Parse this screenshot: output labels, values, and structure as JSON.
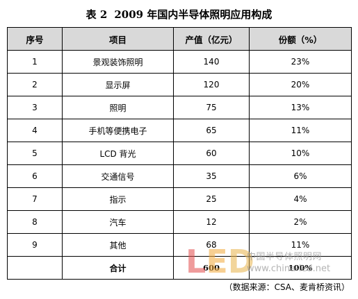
{
  "title": {
    "number": "表 2",
    "text": "2009 年国内半导体照明应用构成"
  },
  "table": {
    "headers": [
      "序号",
      "项目",
      "产值（亿元）",
      "份额（%）"
    ],
    "rows": [
      {
        "no": "1",
        "item": "景观装饰照明",
        "value": "140",
        "share": "23%"
      },
      {
        "no": "2",
        "item": "显示屏",
        "value": "120",
        "share": "20%"
      },
      {
        "no": "3",
        "item": "照明",
        "value": "75",
        "share": "13%"
      },
      {
        "no": "4",
        "item": "手机等便携电子",
        "value": "65",
        "share": "11%"
      },
      {
        "no": "5",
        "item": "LCD 背光",
        "value": "60",
        "share": "10%"
      },
      {
        "no": "6",
        "item": "交通信号",
        "value": "35",
        "share": "6%"
      },
      {
        "no": "7",
        "item": "指示",
        "value": "25",
        "share": "4%"
      },
      {
        "no": "8",
        "item": "汽车",
        "value": "12",
        "share": "2%"
      },
      {
        "no": "9",
        "item": "其他",
        "value": "68",
        "share": "11%"
      }
    ],
    "total": {
      "label": "合计",
      "value": "600",
      "share": "100%"
    }
  },
  "watermark": {
    "logo": "LED",
    "site_name": "中国半导体照明网",
    "url": "www.china-led.net"
  },
  "source_note": "（数据来源：CSA、麦肯桥资讯）"
}
